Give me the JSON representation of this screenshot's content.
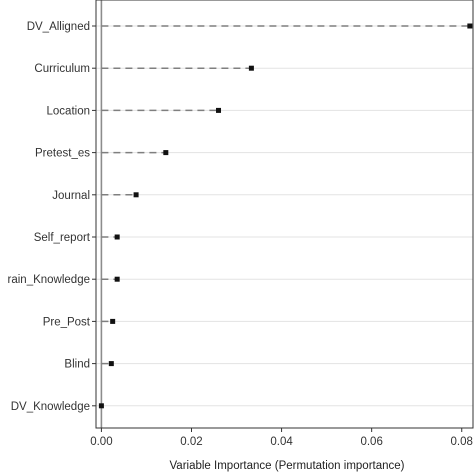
{
  "chart_data": {
    "type": "scatter",
    "title": "",
    "xlabel": "Variable Importance (Permutation importance)",
    "ylabel": "",
    "xlim": [
      -0.0012,
      0.0825
    ],
    "x_ticks": [
      "0.00",
      "0.02",
      "0.04",
      "0.06",
      "0.08"
    ],
    "x_tick_values": [
      0.0,
      0.02,
      0.04,
      0.06,
      0.08
    ],
    "grid": "horizontal",
    "zero_line": 0.0,
    "categories": [
      "DV_Alligned",
      "Curriculum",
      "Location",
      "Pretest_es",
      "Journal",
      "Self_report",
      "Domain_Knowledge",
      "Pre_Post",
      "Blind",
      "DV_Knowledge"
    ],
    "category_labels": [
      "DV_Alligned",
      "Curriculum",
      "Location",
      "Pretest_es",
      "Journal",
      "Self_report",
      "rain_Knowledge",
      "Pre_Post",
      "Blind",
      "DV_Knowledge"
    ],
    "values": [
      0.0818,
      0.0333,
      0.026,
      0.0143,
      0.0077,
      0.0035,
      0.0035,
      0.0025,
      0.0022,
      0.0
    ]
  }
}
